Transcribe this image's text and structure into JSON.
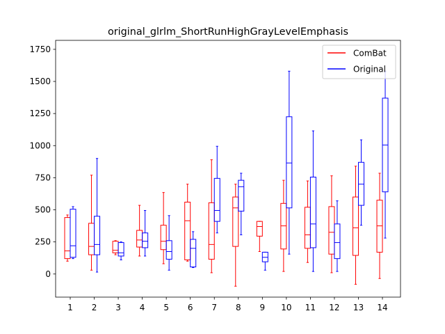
{
  "chart_data": {
    "type": "boxplot",
    "title": "original_glrlm_ShortRunHighGrayLevelEmphasis",
    "xlabel": "",
    "ylabel": "",
    "ylim": [
      -180,
      1820
    ],
    "yticks": [
      0,
      250,
      500,
      750,
      1000,
      1250,
      1500,
      1750
    ],
    "categories": [
      "1",
      "2",
      "3",
      "4",
      "5",
      "6",
      "7",
      "8",
      "9",
      "10",
      "11",
      "12",
      "13",
      "14"
    ],
    "legend": {
      "placement": "top-right"
    },
    "series": [
      {
        "name": "ComBat",
        "color": "#ff0000",
        "boxes": [
          {
            "wlo": 100,
            "q1": 120,
            "med": 180,
            "q3": 440,
            "whi": 460
          },
          {
            "wlo": 30,
            "q1": 150,
            "med": 215,
            "q3": 395,
            "whi": 770
          },
          {
            "wlo": 150,
            "q1": 165,
            "med": 185,
            "q3": 255,
            "whi": 260
          },
          {
            "wlo": 140,
            "q1": 210,
            "med": 265,
            "q3": 340,
            "whi": 535
          },
          {
            "wlo": 80,
            "q1": 190,
            "med": 255,
            "q3": 380,
            "whi": 635
          },
          {
            "wlo": 100,
            "q1": 110,
            "med": 415,
            "q3": 560,
            "whi": 700
          },
          {
            "wlo": 10,
            "q1": 115,
            "med": 230,
            "q3": 555,
            "whi": 890
          },
          {
            "wlo": -95,
            "q1": 215,
            "med": 515,
            "q3": 600,
            "whi": 700
          },
          {
            "wlo": 175,
            "q1": 295,
            "med": 370,
            "q3": 410,
            "whi": 410
          },
          {
            "wlo": 20,
            "q1": 195,
            "med": 375,
            "q3": 550,
            "whi": 730
          },
          {
            "wlo": 90,
            "q1": 200,
            "med": 305,
            "q3": 520,
            "whi": 725
          },
          {
            "wlo": 10,
            "q1": 155,
            "med": 325,
            "q3": 525,
            "whi": 765
          },
          {
            "wlo": -80,
            "q1": 145,
            "med": 360,
            "q3": 600,
            "whi": 840
          },
          {
            "wlo": -35,
            "q1": 170,
            "med": 375,
            "q3": 575,
            "whi": 785
          }
        ]
      },
      {
        "name": "Original",
        "color": "#0000ff",
        "boxes": [
          {
            "wlo": 120,
            "q1": 130,
            "med": 220,
            "q3": 505,
            "whi": 525
          },
          {
            "wlo": 15,
            "q1": 150,
            "med": 230,
            "q3": 450,
            "whi": 900
          },
          {
            "wlo": 110,
            "q1": 140,
            "med": 165,
            "q3": 245,
            "whi": 250
          },
          {
            "wlo": 140,
            "q1": 205,
            "med": 255,
            "q3": 320,
            "whi": 495
          },
          {
            "wlo": 30,
            "q1": 115,
            "med": 175,
            "q3": 260,
            "whi": 455
          },
          {
            "wlo": 50,
            "q1": 55,
            "med": 200,
            "q3": 270,
            "whi": 330
          },
          {
            "wlo": 320,
            "q1": 410,
            "med": 495,
            "q3": 745,
            "whi": 995
          },
          {
            "wlo": 305,
            "q1": 490,
            "med": 680,
            "q3": 730,
            "whi": 785
          },
          {
            "wlo": 30,
            "q1": 95,
            "med": 130,
            "q3": 170,
            "whi": 170
          },
          {
            "wlo": 155,
            "q1": 515,
            "med": 865,
            "q3": 1225,
            "whi": 1580
          },
          {
            "wlo": 20,
            "q1": 205,
            "med": 390,
            "q3": 755,
            "whi": 1115
          },
          {
            "wlo": 20,
            "q1": 120,
            "med": 245,
            "q3": 390,
            "whi": 570
          },
          {
            "wlo": 380,
            "q1": 535,
            "med": 700,
            "q3": 870,
            "whi": 1045
          },
          {
            "wlo": 280,
            "q1": 640,
            "med": 1005,
            "q3": 1370,
            "whi": 1580
          }
        ]
      }
    ]
  }
}
